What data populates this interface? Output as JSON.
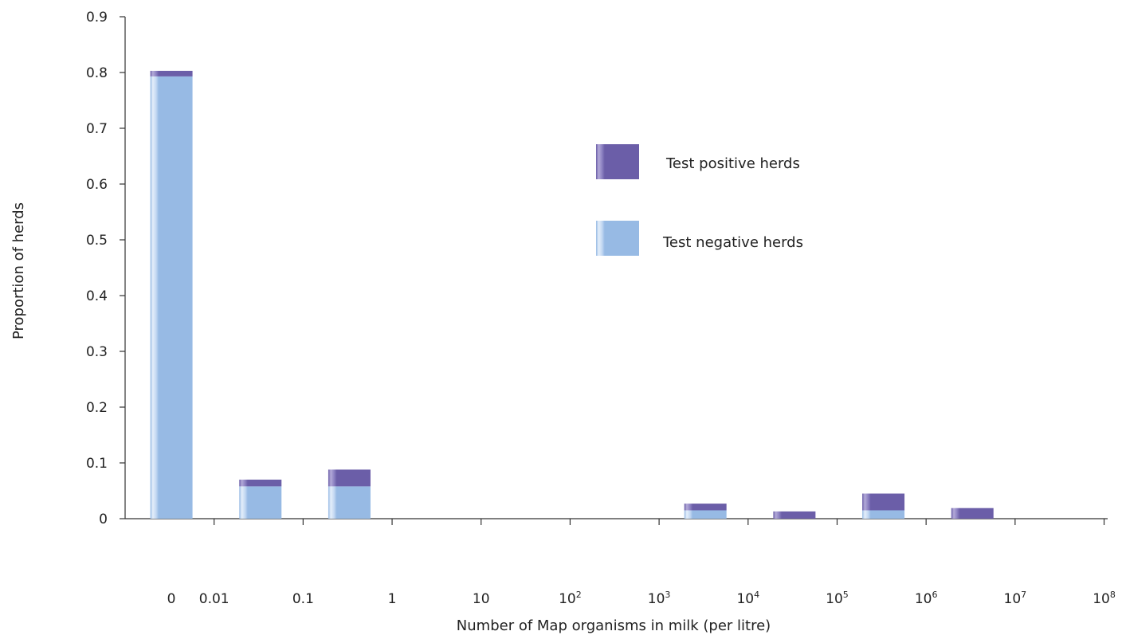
{
  "chart_data": {
    "type": "bar",
    "stacked": true,
    "categories": [
      "0",
      "0.01–0.1",
      "0.1–1",
      "1–10",
      "10–10²",
      "10²–10³",
      "10³–10⁴",
      "10⁴–10⁵",
      "10⁵–10⁶",
      "10⁶–10⁷",
      "10⁷–10⁸"
    ],
    "series": [
      {
        "name": "Test negative herds",
        "color": "#97bae4",
        "values": [
          0.793,
          0.058,
          0.058,
          0,
          0,
          0,
          0.015,
          0,
          0.015,
          0,
          0
        ]
      },
      {
        "name": "Test positive herds",
        "color": "#6b5ea8",
        "values": [
          0.01,
          0.012,
          0.03,
          0,
          0,
          0,
          0.012,
          0.013,
          0.03,
          0.019,
          0
        ]
      }
    ],
    "xlabel": "Number of Map organisms in milk (per litre)",
    "ylabel": "Proportion of herds",
    "ylim": [
      0,
      0.9
    ],
    "yticks": [
      "0",
      "0.1",
      "0.2",
      "0.3",
      "0.4",
      "0.5",
      "0.6",
      "0.7",
      "0.8",
      "0.9"
    ],
    "xticks": [
      {
        "base": "0",
        "exp": ""
      },
      {
        "base": "0.01",
        "exp": ""
      },
      {
        "base": "0.1",
        "exp": ""
      },
      {
        "base": "1",
        "exp": ""
      },
      {
        "base": "10",
        "exp": ""
      },
      {
        "base": "10",
        "exp": "2"
      },
      {
        "base": "10",
        "exp": "3"
      },
      {
        "base": "10",
        "exp": "4"
      },
      {
        "base": "10",
        "exp": "5"
      },
      {
        "base": "10",
        "exp": "6"
      },
      {
        "base": "10",
        "exp": "7"
      },
      {
        "base": "10",
        "exp": "8"
      }
    ],
    "legend": {
      "placement": "upper-right-center",
      "order": [
        "Test positive herds",
        "Test negative herds"
      ]
    },
    "grid": false
  }
}
